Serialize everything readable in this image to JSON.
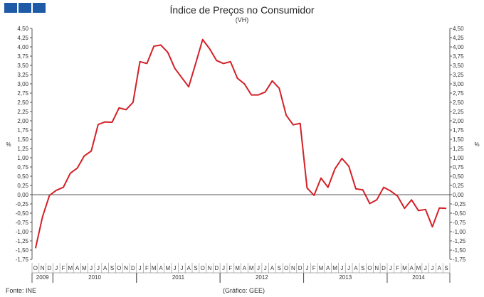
{
  "logo": {
    "color": "#1f5aa6",
    "blocks": 3
  },
  "chart_data": {
    "type": "line",
    "title": "Índice de Preços no Consumidor",
    "subtitle": "(VH)",
    "ylabel_left": "%",
    "ylabel_right": "%",
    "ylim": [
      -1.75,
      4.5
    ],
    "ytick_step": 0.25,
    "yticks": [
      "4,50",
      "4,25",
      "4,00",
      "3,75",
      "3,50",
      "3,25",
      "3,00",
      "2,75",
      "2,50",
      "2,25",
      "2,00",
      "1,75",
      "1,50",
      "1,25",
      "1,00",
      "0,75",
      "0,50",
      "0,25",
      "0,00",
      "-0,25",
      "-0,50",
      "-0,75",
      "-1,00",
      "-1,25",
      "-1,50",
      "-1,75"
    ],
    "month_labels": [
      "O",
      "N",
      "D",
      "J",
      "F",
      "M",
      "A",
      "M",
      "J",
      "J",
      "A",
      "S",
      "O",
      "N",
      "D",
      "J",
      "F",
      "M",
      "A",
      "M",
      "J",
      "J",
      "A",
      "S",
      "O",
      "N",
      "D",
      "J",
      "F",
      "M",
      "A",
      "M",
      "J",
      "J",
      "A",
      "S",
      "O",
      "N",
      "D",
      "J",
      "F",
      "M",
      "A",
      "M",
      "J",
      "J",
      "A",
      "S",
      "O",
      "N",
      "D",
      "J",
      "F",
      "M",
      "A",
      "M",
      "J",
      "J",
      "A",
      "S"
    ],
    "years": [
      {
        "label": "2009",
        "start": 0,
        "end": 3
      },
      {
        "label": "2010",
        "start": 3,
        "end": 15
      },
      {
        "label": "2011",
        "start": 15,
        "end": 27
      },
      {
        "label": "2012",
        "start": 27,
        "end": 39
      },
      {
        "label": "2013",
        "start": 39,
        "end": 51
      },
      {
        "label": "2014",
        "start": 51,
        "end": 60
      }
    ],
    "series": [
      {
        "color": "#d32027",
        "values": [
          -1.45,
          -0.6,
          -0.02,
          0.12,
          0.2,
          0.58,
          0.72,
          1.05,
          1.18,
          1.9,
          1.97,
          1.96,
          2.35,
          2.3,
          2.5,
          3.6,
          3.55,
          4.02,
          4.05,
          3.85,
          3.42,
          3.17,
          2.92,
          3.55,
          4.2,
          3.95,
          3.63,
          3.55,
          3.6,
          3.15,
          3.0,
          2.7,
          2.7,
          2.78,
          3.08,
          2.88,
          2.15,
          1.89,
          1.93,
          0.18,
          -0.02,
          0.45,
          0.2,
          0.7,
          0.98,
          0.77,
          0.16,
          0.13,
          -0.24,
          -0.14,
          0.2,
          0.1,
          -0.04,
          -0.37,
          -0.14,
          -0.43,
          -0.4,
          -0.87,
          -0.36,
          -0.37
        ]
      }
    ]
  },
  "footer": {
    "source": "Fonte: INE",
    "credit": "(Gráfico: GEE)"
  }
}
